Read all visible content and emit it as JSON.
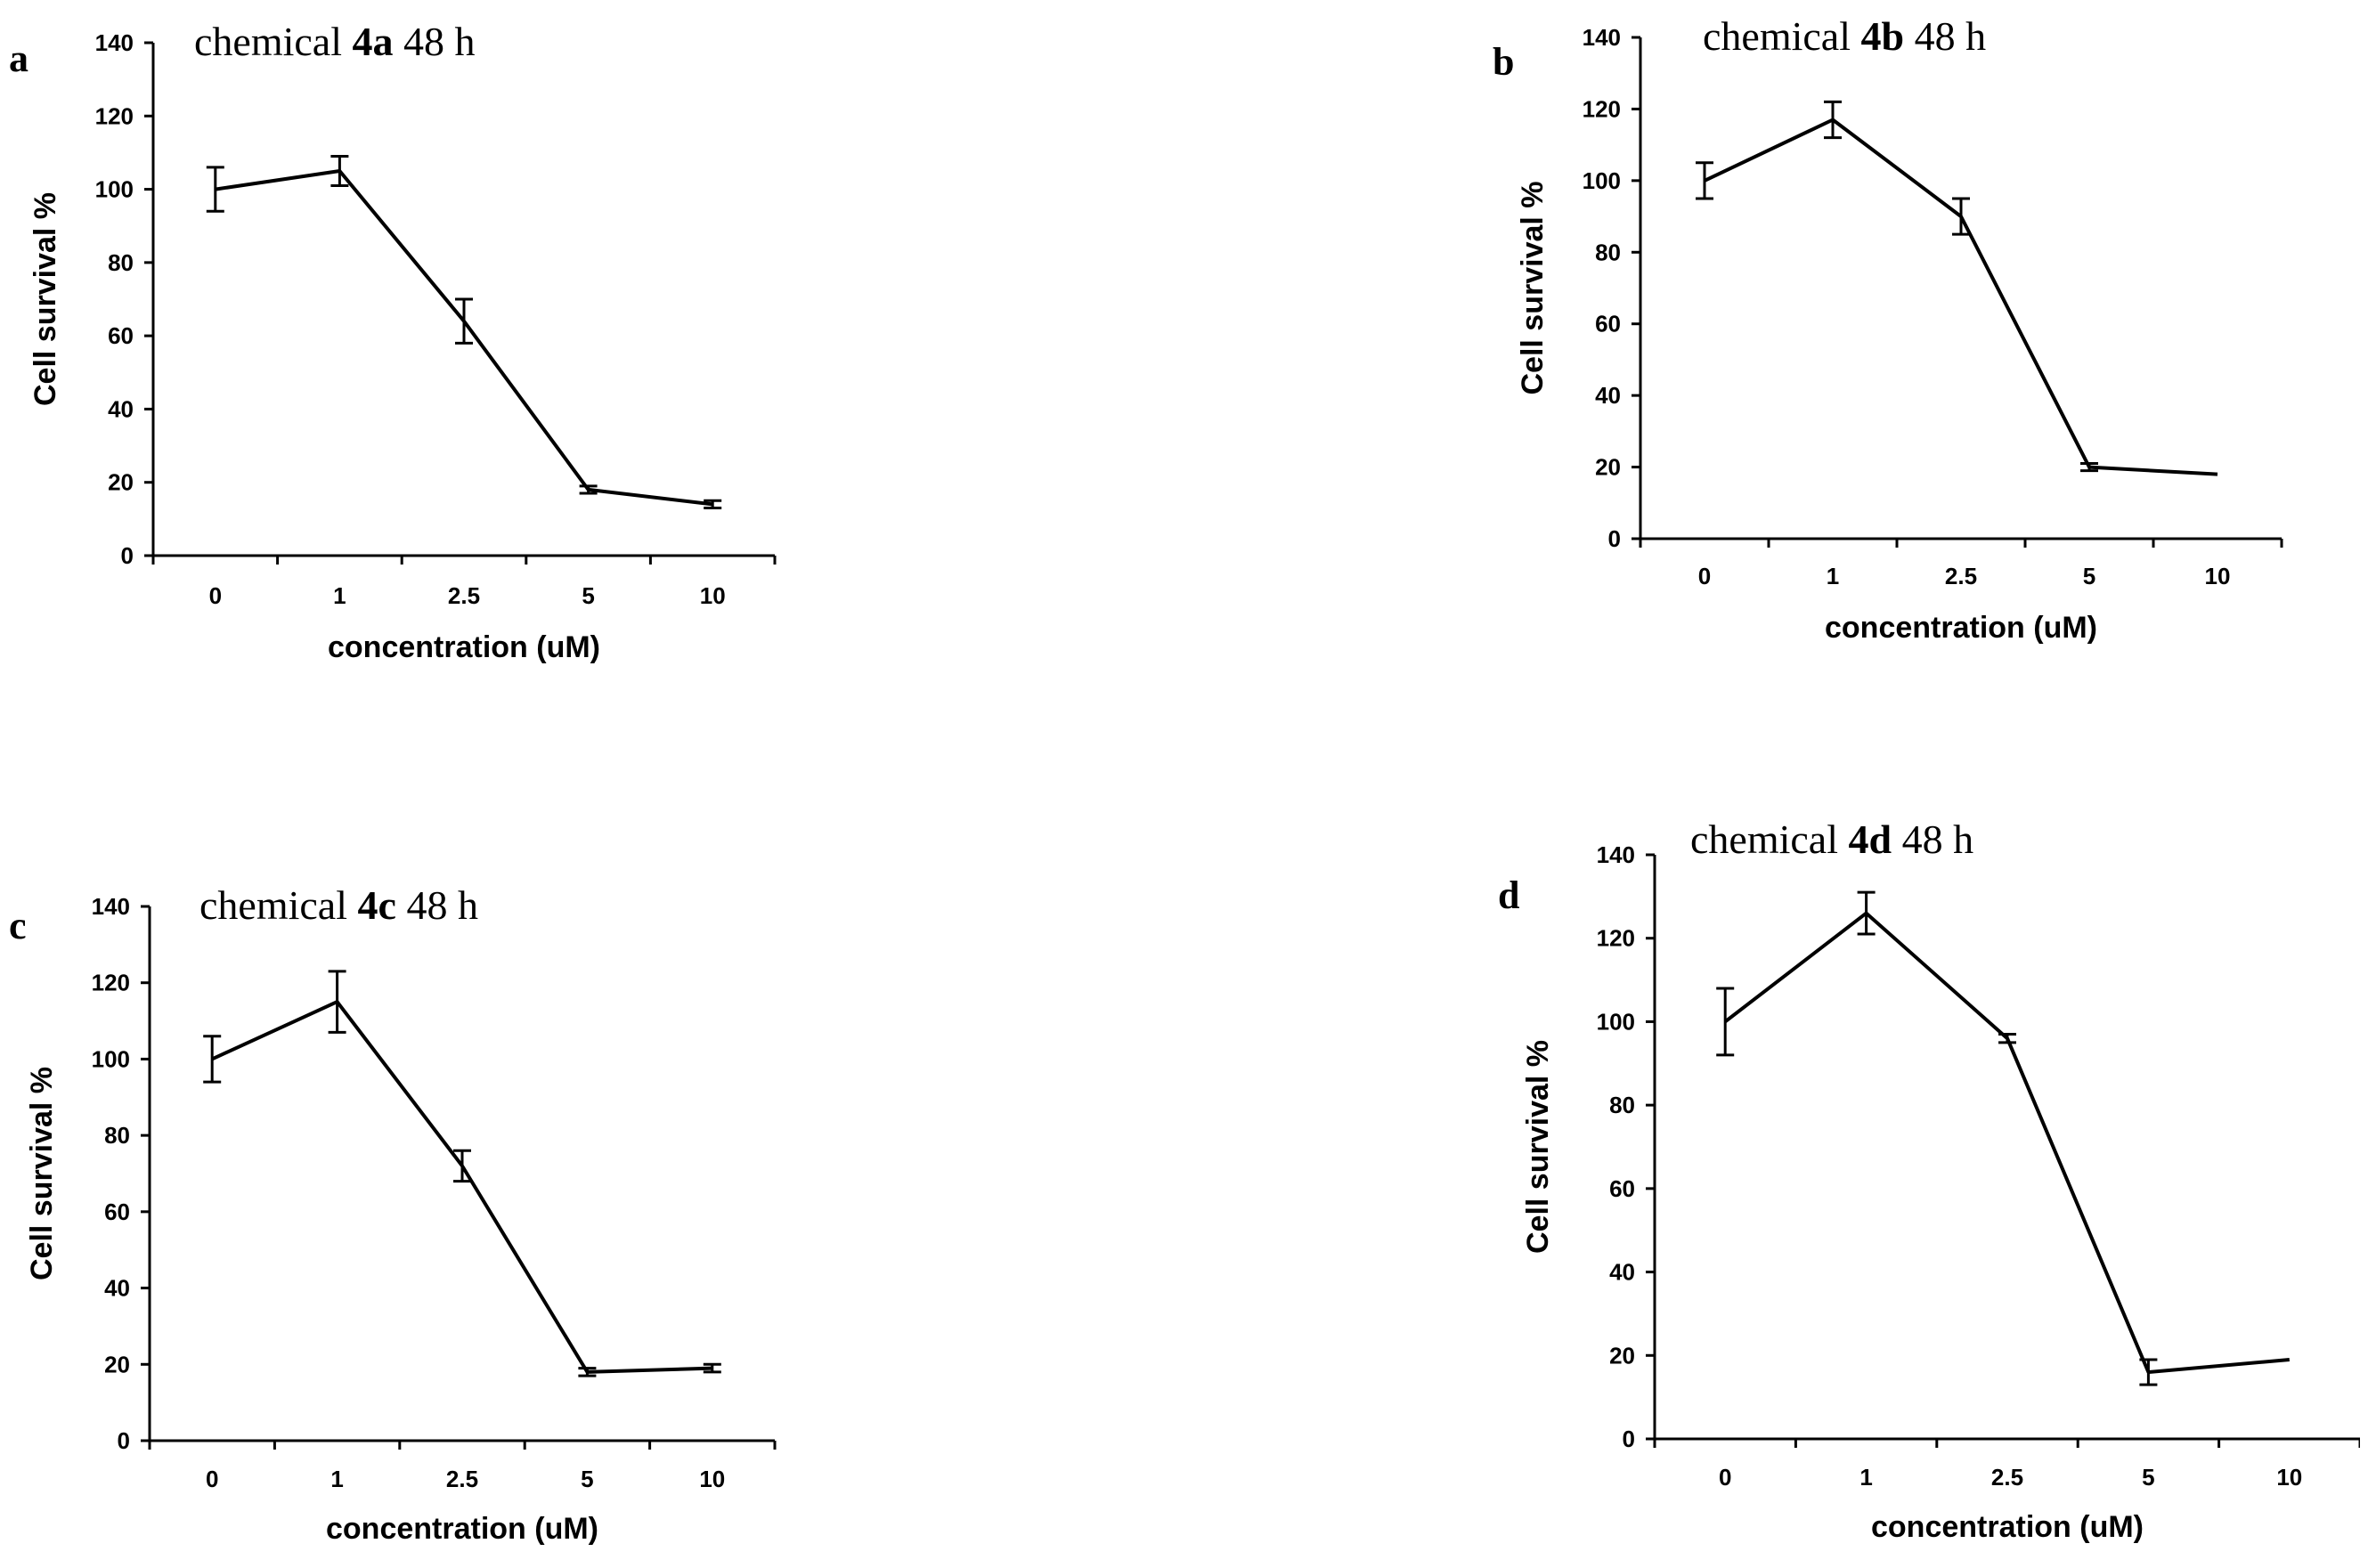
{
  "chart_data": [
    {
      "type": "line",
      "panel": "a",
      "title_prefix": "chemical ",
      "title_bold": "4a",
      "title_suffix": " 48 h",
      "xlabel": "concentration (uM)",
      "ylabel": "Cell survival %",
      "categories": [
        "0",
        "1",
        "2.5",
        "5",
        "10"
      ],
      "yticks": [
        "0",
        "20",
        "40",
        "60",
        "80",
        "100",
        "120",
        "140"
      ],
      "ylim": [
        0,
        140
      ],
      "series": [
        {
          "name": "4a",
          "values": [
            100,
            105,
            64,
            18,
            14
          ],
          "errors": [
            6,
            4,
            6,
            1,
            1
          ]
        }
      ]
    },
    {
      "type": "line",
      "panel": "b",
      "title_prefix": "chemical ",
      "title_bold": "4b",
      "title_suffix": " 48 h",
      "xlabel": "concentration (uM)",
      "ylabel": "Cell survival %",
      "categories": [
        "0",
        "1",
        "2.5",
        "5",
        "10"
      ],
      "yticks": [
        "0",
        "20",
        "40",
        "60",
        "80",
        "100",
        "120",
        "140"
      ],
      "ylim": [
        0,
        140
      ],
      "series": [
        {
          "name": "4b",
          "values": [
            100,
            117,
            90,
            20,
            18
          ],
          "errors": [
            5,
            5,
            5,
            1,
            0
          ]
        }
      ]
    },
    {
      "type": "line",
      "panel": "c",
      "title_prefix": "chemical ",
      "title_bold": "4c",
      "title_suffix": " 48 h",
      "xlabel": "concentration (uM)",
      "ylabel": "Cell survival %",
      "categories": [
        "0",
        "1",
        "2.5",
        "5",
        "10"
      ],
      "yticks": [
        "0",
        "20",
        "40",
        "60",
        "80",
        "100",
        "120",
        "140"
      ],
      "ylim": [
        0,
        140
      ],
      "series": [
        {
          "name": "4c",
          "values": [
            100,
            115,
            72,
            18,
            19
          ],
          "errors": [
            6,
            8,
            4,
            1,
            1
          ]
        }
      ]
    },
    {
      "type": "line",
      "panel": "d",
      "title_prefix": "chemical ",
      "title_bold": "4d",
      "title_suffix": " 48 h",
      "xlabel": "concentration (uM)",
      "ylabel": "Cell survival %",
      "categories": [
        "0",
        "1",
        "2.5",
        "5",
        "10"
      ],
      "yticks": [
        "0",
        "20",
        "40",
        "60",
        "80",
        "100",
        "120",
        "140"
      ],
      "ylim": [
        0,
        140
      ],
      "series": [
        {
          "name": "4d",
          "values": [
            100,
            126,
            96,
            16,
            19
          ],
          "errors": [
            8,
            5,
            1,
            3,
            0
          ]
        }
      ]
    }
  ]
}
